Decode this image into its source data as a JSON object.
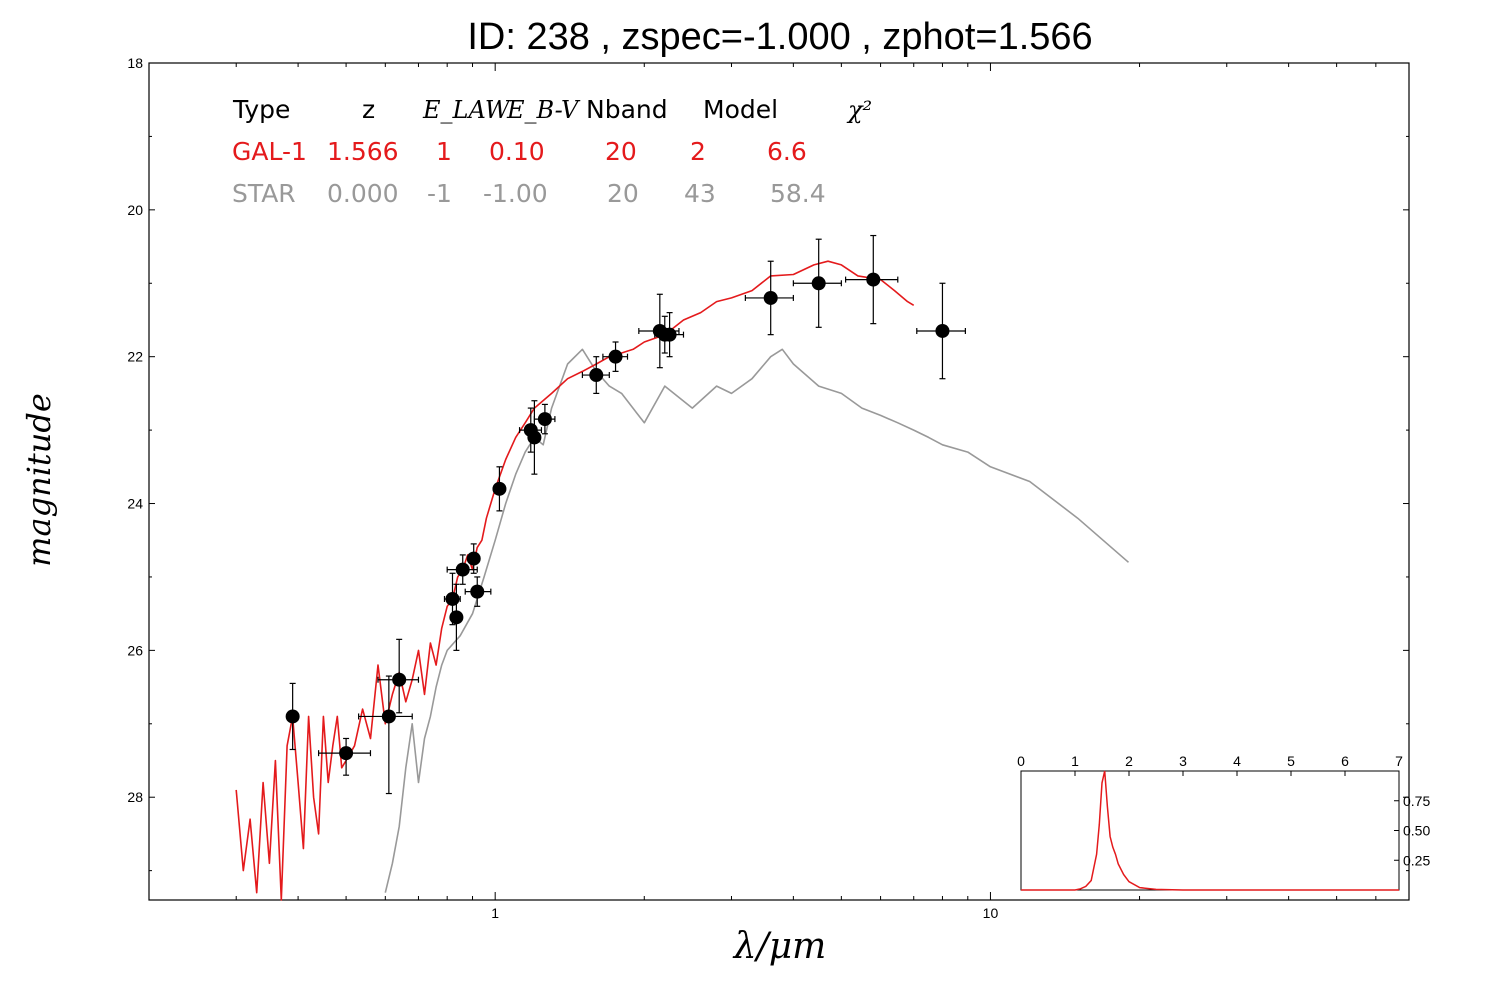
{
  "chart_data": {
    "type": "scatter",
    "title": "ID:  238   , zspec=-1.000 , zphot=1.566",
    "xlabel": "λ/μm",
    "ylabel": "magnitude",
    "x_scale": "log",
    "y_inverted": true,
    "xlim": [
      0.2,
      70
    ],
    "ylim": [
      29.4,
      18
    ],
    "x_tick_labels": [
      "1",
      "10"
    ],
    "y_tick_labels": [
      "18",
      "20",
      "22",
      "24",
      "26",
      "28"
    ],
    "fit_table": {
      "headers": [
        "Type",
        "z",
        "E_LAW",
        "E_B-V",
        "Nband",
        "Model",
        "χ²"
      ],
      "rows": [
        {
          "name": "GAL-1",
          "color": "#e41a1c",
          "values": [
            "GAL-1",
            "1.566",
            "1",
            "0.10",
            "20",
            "2",
            "6.6"
          ]
        },
        {
          "name": "STAR",
          "color": "#999999",
          "values": [
            "STAR",
            "0.000",
            "-1",
            "-1.00",
            "20",
            "43",
            "58.4"
          ]
        }
      ]
    },
    "photometry": [
      {
        "x": 0.39,
        "y": 26.9,
        "xerr": [
          0.0,
          0.0
        ],
        "yerr": [
          0.45,
          0.45
        ]
      },
      {
        "x": 0.5,
        "y": 27.4,
        "xerr": [
          0.06,
          0.06
        ],
        "yerr": [
          0.2,
          0.3
        ]
      },
      {
        "x": 0.61,
        "y": 26.9,
        "xerr": [
          0.08,
          0.07
        ],
        "yerr": [
          0.55,
          1.05
        ]
      },
      {
        "x": 0.64,
        "y": 26.4,
        "xerr": [
          0.06,
          0.06
        ],
        "yerr": [
          0.55,
          0.45
        ]
      },
      {
        "x": 0.82,
        "y": 25.3,
        "xerr": [
          0.03,
          0.03
        ],
        "yerr": [
          0.35,
          0.35
        ]
      },
      {
        "x": 0.835,
        "y": 25.55,
        "xerr": [
          0.02,
          0.02
        ],
        "yerr": [
          0.45,
          0.45
        ]
      },
      {
        "x": 0.86,
        "y": 24.9,
        "xerr": [
          0.06,
          0.06
        ],
        "yerr": [
          0.2,
          0.2
        ]
      },
      {
        "x": 0.905,
        "y": 24.75,
        "xerr": [
          0.02,
          0.02
        ],
        "yerr": [
          0.2,
          0.2
        ]
      },
      {
        "x": 0.92,
        "y": 25.2,
        "xerr": [
          0.05,
          0.06
        ],
        "yerr": [
          0.2,
          0.2
        ]
      },
      {
        "x": 1.02,
        "y": 23.8,
        "xerr": [
          0.02,
          0.02
        ],
        "yerr": [
          0.3,
          0.3
        ]
      },
      {
        "x": 1.18,
        "y": 23.0,
        "xerr": [
          0.06,
          0.06
        ],
        "yerr": [
          0.3,
          0.3
        ]
      },
      {
        "x": 1.2,
        "y": 23.1,
        "xerr": [
          0.0,
          0.0
        ],
        "yerr": [
          0.5,
          0.5
        ]
      },
      {
        "x": 1.26,
        "y": 22.85,
        "xerr": [
          0.06,
          0.06
        ],
        "yerr": [
          0.2,
          0.2
        ]
      },
      {
        "x": 1.6,
        "y": 22.25,
        "xerr": [
          0.1,
          0.1
        ],
        "yerr": [
          0.25,
          0.25
        ]
      },
      {
        "x": 1.75,
        "y": 22.0,
        "xerr": [
          0.1,
          0.1
        ],
        "yerr": [
          0.2,
          0.2
        ]
      },
      {
        "x": 2.15,
        "y": 21.65,
        "xerr": [
          0.2,
          0.2
        ],
        "yerr": [
          0.5,
          0.5
        ]
      },
      {
        "x": 2.2,
        "y": 21.7,
        "xerr": [
          0.0,
          0.0
        ],
        "yerr": [
          0.25,
          0.25
        ]
      },
      {
        "x": 2.25,
        "y": 21.7,
        "xerr": [
          0.15,
          0.15
        ],
        "yerr": [
          0.3,
          0.3
        ]
      },
      {
        "x": 3.6,
        "y": 21.2,
        "xerr": [
          0.4,
          0.4
        ],
        "yerr": [
          0.5,
          0.5
        ]
      },
      {
        "x": 4.5,
        "y": 21.0,
        "xerr": [
          0.5,
          0.5
        ],
        "yerr": [
          0.6,
          0.6
        ]
      },
      {
        "x": 5.8,
        "y": 20.95,
        "xerr": [
          0.7,
          0.7
        ],
        "yerr": [
          0.6,
          0.6
        ]
      },
      {
        "x": 8.0,
        "y": 21.65,
        "xerr": [
          0.9,
          0.9
        ],
        "yerr": [
          0.65,
          0.65
        ]
      }
    ],
    "galaxy_sed": {
      "name": "GAL-1",
      "color": "#e41a1c",
      "x": [
        0.3,
        0.31,
        0.32,
        0.33,
        0.34,
        0.35,
        0.36,
        0.37,
        0.38,
        0.39,
        0.4,
        0.41,
        0.42,
        0.43,
        0.44,
        0.45,
        0.46,
        0.47,
        0.48,
        0.49,
        0.5,
        0.52,
        0.54,
        0.56,
        0.58,
        0.6,
        0.62,
        0.64,
        0.66,
        0.68,
        0.7,
        0.72,
        0.74,
        0.76,
        0.78,
        0.8,
        0.82,
        0.84,
        0.86,
        0.88,
        0.9,
        0.92,
        0.94,
        0.96,
        0.98,
        1.0,
        1.05,
        1.1,
        1.15,
        1.2,
        1.3,
        1.4,
        1.5,
        1.6,
        1.7,
        1.8,
        1.9,
        2.0,
        2.2,
        2.4,
        2.6,
        2.8,
        3.0,
        3.3,
        3.6,
        4.0,
        4.4,
        4.7,
        5.0,
        5.4,
        6.0,
        6.4,
        6.8,
        7.0
      ],
      "y": [
        27.9,
        29.0,
        28.3,
        29.3,
        27.8,
        28.9,
        27.5,
        29.4,
        27.3,
        26.9,
        27.8,
        28.7,
        26.9,
        28.0,
        28.5,
        26.9,
        27.8,
        27.3,
        26.9,
        27.6,
        27.5,
        27.3,
        26.8,
        27.2,
        26.2,
        27.0,
        26.6,
        26.3,
        26.7,
        26.4,
        26.0,
        26.6,
        25.9,
        26.2,
        25.7,
        25.4,
        25.3,
        25.0,
        24.9,
        24.7,
        24.9,
        24.6,
        24.5,
        24.2,
        24.0,
        23.8,
        23.4,
        23.1,
        22.9,
        22.7,
        22.5,
        22.3,
        22.2,
        22.1,
        22.0,
        21.95,
        21.9,
        21.8,
        21.7,
        21.5,
        21.4,
        21.25,
        21.2,
        21.1,
        20.9,
        20.88,
        20.75,
        20.7,
        20.75,
        20.9,
        20.95,
        21.1,
        21.25,
        21.3
      ]
    },
    "star_sed": {
      "name": "STAR",
      "color": "#999999",
      "x": [
        0.6,
        0.62,
        0.64,
        0.66,
        0.68,
        0.7,
        0.72,
        0.74,
        0.76,
        0.78,
        0.8,
        0.85,
        0.9,
        0.95,
        1.0,
        1.05,
        1.1,
        1.15,
        1.2,
        1.25,
        1.3,
        1.4,
        1.5,
        1.6,
        1.7,
        1.8,
        2.0,
        2.2,
        2.5,
        2.8,
        3.0,
        3.3,
        3.6,
        3.8,
        4.0,
        4.5,
        5.0,
        5.5,
        6.0,
        6.5,
        7.0,
        7.5,
        8.0,
        9.0,
        10.0,
        12.0,
        15.0,
        19.0
      ],
      "y": [
        29.3,
        28.9,
        28.4,
        27.6,
        27.0,
        27.8,
        27.2,
        26.9,
        26.5,
        26.2,
        26.0,
        25.8,
        25.5,
        25.0,
        24.5,
        24.0,
        23.6,
        23.3,
        23.1,
        23.2,
        22.7,
        22.1,
        21.9,
        22.2,
        22.4,
        22.5,
        22.9,
        22.4,
        22.7,
        22.4,
        22.5,
        22.3,
        22.0,
        21.9,
        22.1,
        22.4,
        22.5,
        22.7,
        22.8,
        22.9,
        23.0,
        23.1,
        23.2,
        23.3,
        23.5,
        23.7,
        24.2,
        24.8
      ]
    },
    "inset": {
      "type": "line",
      "xlim": [
        0,
        7
      ],
      "ylim": [
        0,
        1.0
      ],
      "x_tick_labels": [
        "0",
        "1",
        "2",
        "3",
        "4",
        "5",
        "6",
        "7"
      ],
      "y_tick_labels": [
        "0.25",
        "0.50",
        "0.75"
      ],
      "color": "#e41a1c",
      "x": [
        0.0,
        1.0,
        1.1,
        1.2,
        1.3,
        1.4,
        1.45,
        1.5,
        1.55,
        1.6,
        1.65,
        1.7,
        1.75,
        1.8,
        1.9,
        2.0,
        2.2,
        2.5,
        3.0,
        7.0
      ],
      "y": [
        0.0,
        0.0,
        0.01,
        0.03,
        0.08,
        0.3,
        0.55,
        0.9,
        1.0,
        0.7,
        0.45,
        0.36,
        0.3,
        0.22,
        0.13,
        0.07,
        0.02,
        0.005,
        0.0,
        0.0
      ]
    }
  }
}
